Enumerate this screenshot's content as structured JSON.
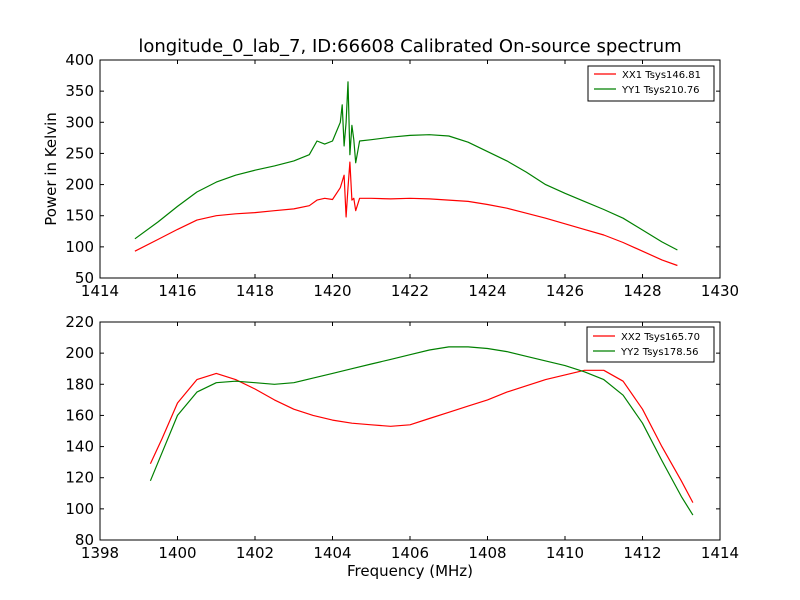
{
  "chart_data": [
    {
      "type": "line",
      "title": "longitude_0_lab_7, ID:66608 Calibrated On-source spectrum",
      "xlabel": "",
      "ylabel": "Power in Kelvin",
      "xlim": [
        1414,
        1430
      ],
      "ylim": [
        50,
        400
      ],
      "xticks": [
        1414,
        1416,
        1418,
        1420,
        1422,
        1424,
        1426,
        1428,
        1430
      ],
      "yticks": [
        50,
        100,
        150,
        200,
        250,
        300,
        350,
        400
      ],
      "grid": false,
      "legend_position": "top-right",
      "series": [
        {
          "name": "XX1 Tsys146.81",
          "color": "#ff0000",
          "x": [
            1414.9,
            1415.5,
            1416.0,
            1416.5,
            1417.0,
            1417.5,
            1418.0,
            1418.5,
            1419.0,
            1419.4,
            1419.6,
            1419.8,
            1420.0,
            1420.2,
            1420.3,
            1420.35,
            1420.4,
            1420.45,
            1420.5,
            1420.55,
            1420.6,
            1420.7,
            1421.0,
            1421.5,
            1422.0,
            1422.5,
            1423.0,
            1423.5,
            1424.0,
            1424.5,
            1425.0,
            1425.5,
            1426.0,
            1426.5,
            1427.0,
            1427.5,
            1428.0,
            1428.5,
            1428.9
          ],
          "values": [
            93,
            112,
            128,
            143,
            150,
            153,
            155,
            158,
            161,
            166,
            175,
            178,
            176,
            195,
            215,
            148,
            195,
            236,
            175,
            178,
            158,
            178,
            178,
            177,
            178,
            177,
            175,
            173,
            168,
            162,
            154,
            146,
            137,
            128,
            119,
            107,
            93,
            79,
            70
          ]
        },
        {
          "name": "YY1 Tsys210.76",
          "color": "#008000",
          "x": [
            1414.9,
            1415.5,
            1416.0,
            1416.5,
            1417.0,
            1417.5,
            1418.0,
            1418.5,
            1419.0,
            1419.4,
            1419.6,
            1419.8,
            1420.0,
            1420.2,
            1420.25,
            1420.3,
            1420.35,
            1420.4,
            1420.45,
            1420.5,
            1420.55,
            1420.6,
            1420.7,
            1421.0,
            1421.5,
            1422.0,
            1422.5,
            1423.0,
            1423.5,
            1424.0,
            1424.5,
            1425.0,
            1425.5,
            1426.0,
            1426.5,
            1427.0,
            1427.5,
            1428.0,
            1428.5,
            1428.9
          ],
          "values": [
            113,
            140,
            165,
            188,
            204,
            215,
            223,
            230,
            238,
            248,
            270,
            265,
            270,
            300,
            328,
            262,
            300,
            365,
            248,
            295,
            272,
            235,
            270,
            272,
            276,
            279,
            280,
            278,
            268,
            253,
            238,
            220,
            200,
            186,
            173,
            160,
            146,
            127,
            108,
            95
          ]
        }
      ]
    },
    {
      "type": "line",
      "title": "",
      "xlabel": "Frequency (MHz)",
      "ylabel": "",
      "xlim": [
        1398,
        1414
      ],
      "ylim": [
        80,
        220
      ],
      "xticks": [
        1398,
        1400,
        1402,
        1404,
        1406,
        1408,
        1410,
        1412,
        1414
      ],
      "yticks": [
        80,
        100,
        120,
        140,
        160,
        180,
        200,
        220
      ],
      "grid": false,
      "legend_position": "top-right",
      "series": [
        {
          "name": "XX2 Tsys165.70",
          "color": "#ff0000",
          "x": [
            1399.3,
            1399.6,
            1400.0,
            1400.5,
            1401.0,
            1401.5,
            1402.0,
            1402.5,
            1403.0,
            1403.5,
            1404.0,
            1404.5,
            1405.0,
            1405.5,
            1406.0,
            1406.5,
            1407.0,
            1407.5,
            1408.0,
            1408.5,
            1409.0,
            1409.5,
            1410.0,
            1410.5,
            1411.0,
            1411.5,
            1412.0,
            1412.5,
            1413.0,
            1413.3
          ],
          "values": [
            129,
            145,
            168,
            183,
            187,
            183,
            177,
            170,
            164,
            160,
            157,
            155,
            154,
            153,
            154,
            158,
            162,
            166,
            170,
            175,
            179,
            183,
            186,
            189,
            189,
            182,
            164,
            140,
            118,
            104
          ]
        },
        {
          "name": "YY2 Tsys178.56",
          "color": "#008000",
          "x": [
            1399.3,
            1399.6,
            1400.0,
            1400.5,
            1401.0,
            1401.5,
            1402.0,
            1402.5,
            1403.0,
            1403.5,
            1404.0,
            1404.5,
            1405.0,
            1405.5,
            1406.0,
            1406.5,
            1407.0,
            1407.5,
            1408.0,
            1408.5,
            1409.0,
            1409.5,
            1410.0,
            1410.5,
            1411.0,
            1411.5,
            1412.0,
            1412.5,
            1413.0,
            1413.3
          ],
          "values": [
            118,
            136,
            160,
            175,
            181,
            182,
            181,
            180,
            181,
            184,
            187,
            190,
            193,
            196,
            199,
            202,
            204,
            204,
            203,
            201,
            198,
            195,
            192,
            188,
            183,
            173,
            155,
            131,
            108,
            96
          ]
        }
      ]
    }
  ]
}
